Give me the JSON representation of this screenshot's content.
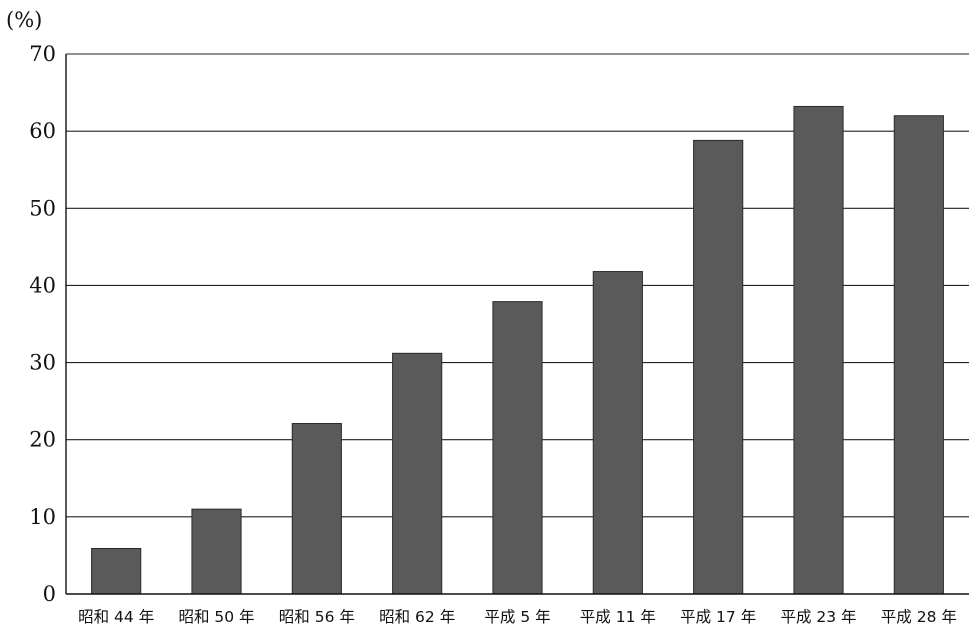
{
  "chart_data": {
    "type": "bar",
    "title": "",
    "xlabel": "",
    "ylabel": "",
    "unit_label": "(%)",
    "ylim": [
      0,
      70
    ],
    "yticks": [
      0,
      10,
      20,
      30,
      40,
      50,
      60,
      70
    ],
    "grid": true,
    "categories": [
      "昭和 44 年",
      "昭和 50 年",
      "昭和 56 年",
      "昭和 62 年",
      "平成 5 年",
      "平成 11 年",
      "平成 17 年",
      "平成 23 年",
      "平成 28 年"
    ],
    "values": [
      5.9,
      11.0,
      22.1,
      31.2,
      37.9,
      41.8,
      58.8,
      63.2,
      62.0
    ],
    "bar_color": "#5a5a5a"
  }
}
